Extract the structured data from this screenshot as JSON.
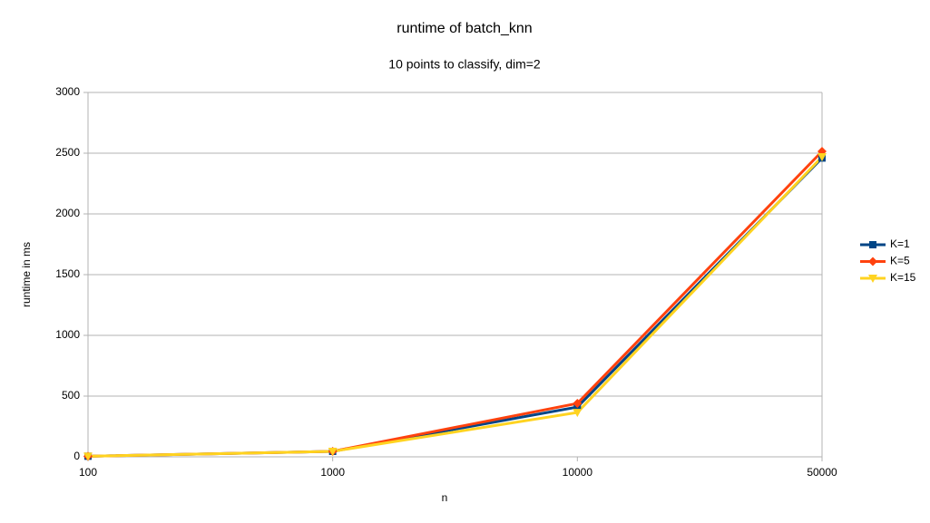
{
  "chart_data": {
    "type": "line",
    "title": "runtime of batch_knn",
    "subtitle": "10 points to classify, dim=2",
    "x_label": "n",
    "y_label": "runtime in ms",
    "categories": [
      "100",
      "1000",
      "10000",
      "50000"
    ],
    "series": [
      {
        "name": "K=1",
        "color": "#004586",
        "marker": "square",
        "values": [
          5,
          45,
          410,
          2460
        ]
      },
      {
        "name": "K=5",
        "color": "#ff420e",
        "marker": "diamond",
        "values": [
          5,
          45,
          440,
          2515
        ]
      },
      {
        "name": "K=15",
        "color": "#ffd320",
        "marker": "triangle-down",
        "values": [
          5,
          45,
          365,
          2470
        ]
      }
    ],
    "ylim": [
      0,
      3000
    ],
    "yticks": [
      0,
      500,
      1000,
      1500,
      2000,
      2500,
      3000
    ],
    "grid": true,
    "legend": "right"
  }
}
